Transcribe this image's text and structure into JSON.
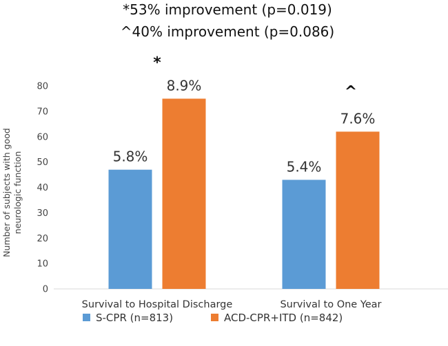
{
  "chart_data": {
    "type": "bar",
    "title_lines": [
      "*53% improvement (p=0.019)",
      "^40% improvement (p=0.086)"
    ],
    "ylabel": [
      "Number of subjects with good",
      "neurologic function"
    ],
    "xlabel": "",
    "categories": [
      "Survival to Hospital Discharge",
      "Survival to One Year"
    ],
    "ylim": [
      0,
      80
    ],
    "yticks": [
      0,
      10,
      20,
      30,
      40,
      50,
      60,
      70,
      80
    ],
    "grid": false,
    "legend_position": "bottom",
    "series": [
      {
        "name": "S-CPR (n=813)",
        "color": "#5B9BD5",
        "values": [
          47,
          43
        ],
        "labels": [
          "5.8%",
          "5.4%"
        ]
      },
      {
        "name": "ACD-CPR+ITD (n=842)",
        "color": "#ED7D31",
        "values": [
          75,
          62
        ],
        "labels": [
          "8.9%",
          "7.6%"
        ]
      }
    ],
    "annotations": [
      "*",
      "^"
    ]
  }
}
